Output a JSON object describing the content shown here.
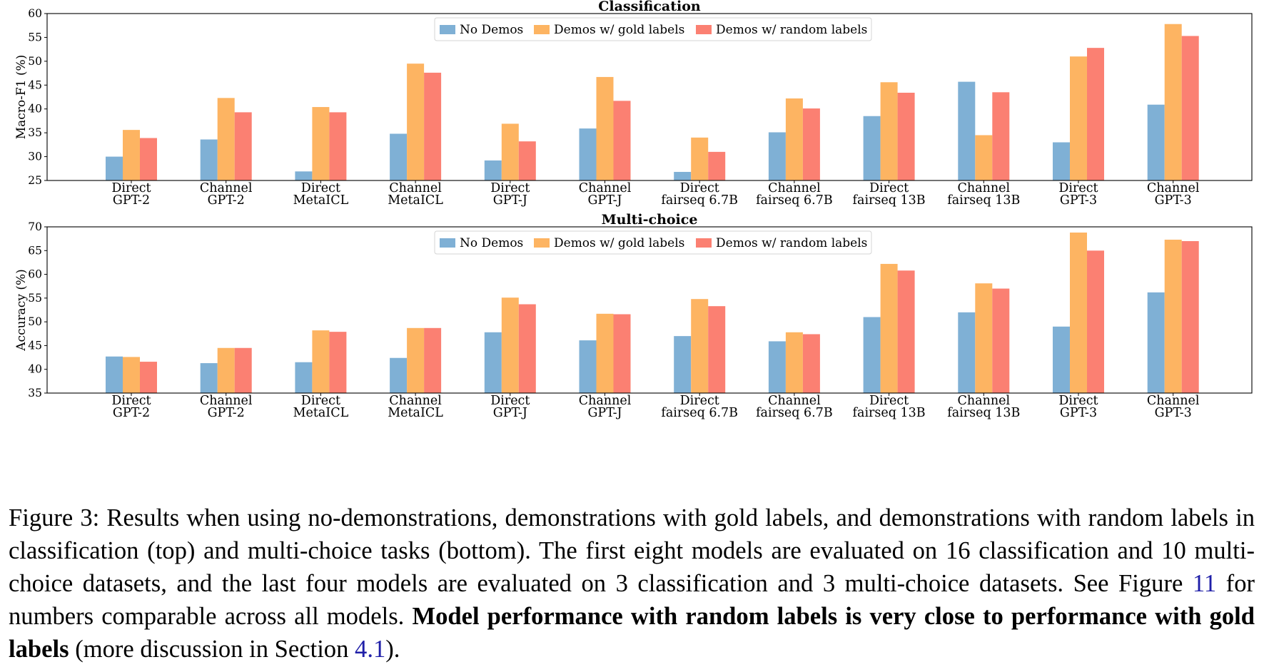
{
  "chart_data": [
    {
      "type": "bar",
      "title": "Classification",
      "ylabel": "Macro-F1 (%)",
      "ylim": [
        25,
        60
      ],
      "yticks": [
        25,
        30,
        35,
        40,
        45,
        50,
        55,
        60
      ],
      "legend_position": "top-center",
      "grid": false,
      "categories": [
        [
          "Direct",
          "GPT-2"
        ],
        [
          "Channel",
          "GPT-2"
        ],
        [
          "Direct",
          "MetaICL"
        ],
        [
          "Channel",
          "MetaICL"
        ],
        [
          "Direct",
          "GPT-J"
        ],
        [
          "Channel",
          "GPT-J"
        ],
        [
          "Direct",
          "fairseq 6.7B"
        ],
        [
          "Channel",
          "fairseq 6.7B"
        ],
        [
          "Direct",
          "fairseq 13B"
        ],
        [
          "Channel",
          "fairseq 13B"
        ],
        [
          "Direct",
          "GPT-3"
        ],
        [
          "Channel",
          "GPT-3"
        ]
      ],
      "series": [
        {
          "name": "No Demos",
          "color": "#7fb0d5",
          "values": [
            30.0,
            33.6,
            26.9,
            34.8,
            29.2,
            35.9,
            26.8,
            35.1,
            38.5,
            45.7,
            33.0,
            40.9
          ]
        },
        {
          "name": "Demos w/ gold labels",
          "color": "#fdb462",
          "values": [
            35.6,
            42.3,
            40.4,
            49.5,
            36.9,
            46.7,
            34.0,
            42.2,
            45.6,
            34.5,
            51.0,
            57.8
          ]
        },
        {
          "name": "Demos w/ random labels",
          "color": "#fb8072",
          "values": [
            33.9,
            39.3,
            39.3,
            47.6,
            33.2,
            41.7,
            31.0,
            40.1,
            43.4,
            43.5,
            52.8,
            55.3
          ]
        }
      ]
    },
    {
      "type": "bar",
      "title": "Multi-choice",
      "ylabel": "Accuracy (%)",
      "ylim": [
        35,
        70
      ],
      "yticks": [
        35,
        40,
        45,
        50,
        55,
        60,
        65,
        70
      ],
      "legend_position": "top-center",
      "grid": false,
      "categories": [
        [
          "Direct",
          "GPT-2"
        ],
        [
          "Channel",
          "GPT-2"
        ],
        [
          "Direct",
          "MetaICL"
        ],
        [
          "Channel",
          "MetaICL"
        ],
        [
          "Direct",
          "GPT-J"
        ],
        [
          "Channel",
          "GPT-J"
        ],
        [
          "Direct",
          "fairseq 6.7B"
        ],
        [
          "Channel",
          "fairseq 6.7B"
        ],
        [
          "Direct",
          "fairseq 13B"
        ],
        [
          "Channel",
          "fairseq 13B"
        ],
        [
          "Direct",
          "GPT-3"
        ],
        [
          "Channel",
          "GPT-3"
        ]
      ],
      "series": [
        {
          "name": "No Demos",
          "color": "#7fb0d5",
          "values": [
            42.7,
            41.3,
            41.5,
            42.4,
            47.8,
            46.1,
            47.0,
            45.9,
            51.0,
            52.0,
            49.0,
            56.2
          ]
        },
        {
          "name": "Demos w/ gold labels",
          "color": "#fdb462",
          "values": [
            42.6,
            44.5,
            48.2,
            48.7,
            55.1,
            51.7,
            54.8,
            47.8,
            62.2,
            58.1,
            68.8,
            67.3
          ]
        },
        {
          "name": "Demos w/ random labels",
          "color": "#fb8072",
          "values": [
            41.6,
            44.5,
            47.9,
            48.7,
            53.7,
            51.6,
            53.3,
            47.4,
            60.8,
            57.0,
            65.0,
            67.0
          ]
        }
      ]
    }
  ],
  "caption": {
    "part1": "Figure 3: Results when using no-demonstrations, demonstrations with gold labels, and demonstrations with random labels in classification (top) and multi-choice tasks (bottom). The first eight models are evaluated on 16 classification and 10 multi-choice datasets, and the last four models are evaluated on 3 classification and 3 multi-choice datasets. See Figure ",
    "ref_figure": "11",
    "part2": " for numbers comparable across all models. ",
    "bold": "Model performance with random labels is very close to performance with gold labels",
    "part3": " (more discussion in Section ",
    "ref_section": "4.1",
    "part4": ")."
  }
}
